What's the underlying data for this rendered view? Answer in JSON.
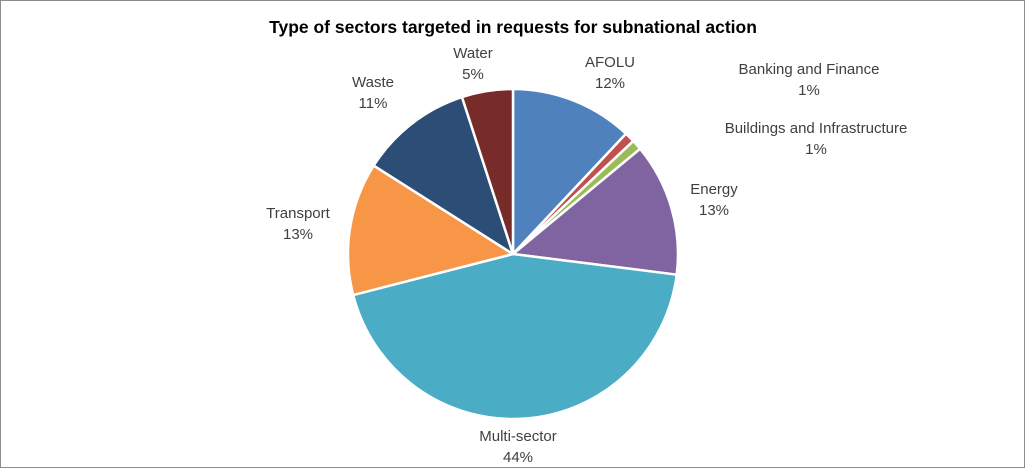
{
  "chart_data": {
    "type": "pie",
    "title": "Type of sectors targeted in requests for subnational action",
    "slices": [
      {
        "label": "AFOLU",
        "value": 12,
        "display": "12%",
        "color": "#4f81bd"
      },
      {
        "label": "Banking and Finance",
        "value": 1,
        "display": "1%",
        "color": "#c0504d"
      },
      {
        "label": "Buildings and Infrastructure",
        "value": 1,
        "display": "1%",
        "color": "#9bbb59"
      },
      {
        "label": "Energy",
        "value": 13,
        "display": "13%",
        "color": "#8064a2"
      },
      {
        "label": "Multi-sector",
        "value": 44,
        "display": "44%",
        "color": "#4bacc6"
      },
      {
        "label": "Transport",
        "value": 13,
        "display": "13%",
        "color": "#f79646"
      },
      {
        "label": "Waste",
        "value": 11,
        "display": "11%",
        "color": "#2c4d75"
      },
      {
        "label": "Water",
        "value": 5,
        "display": "5%",
        "color": "#772c2a"
      }
    ],
    "start": "12 o'clock",
    "direction": "clockwise",
    "legend": "none",
    "data_labels": "category name and percentage"
  }
}
